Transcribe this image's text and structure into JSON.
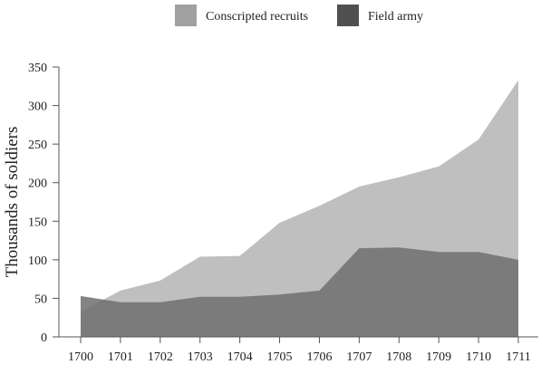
{
  "chart_data": {
    "type": "area",
    "title": "",
    "xlabel": "",
    "ylabel": "Thousands of soldiers",
    "x": [
      1700,
      1701,
      1702,
      1703,
      1704,
      1705,
      1706,
      1707,
      1708,
      1709,
      1710,
      1711
    ],
    "x_tick_labels": [
      "1700",
      "1701",
      "1702",
      "1703",
      "1704",
      "1705",
      "1706",
      "1707",
      "1708",
      "1709",
      "1710",
      "1711"
    ],
    "ylim": [
      0,
      350
    ],
    "y_ticks": [
      0,
      50,
      100,
      150,
      200,
      250,
      300,
      350
    ],
    "y_tick_labels": [
      "0",
      "50",
      "100",
      "150",
      "200",
      "250",
      "300",
      "350"
    ],
    "grid": false,
    "legend_position": "top",
    "series": [
      {
        "name": "Conscripted recruits",
        "color": "#b4b4b4",
        "values": [
          33,
          60,
          73,
          104,
          105,
          148,
          170,
          195,
          207,
          221,
          256,
          333
        ]
      },
      {
        "name": "Field army",
        "color": "#6e6e6e",
        "values": [
          53,
          45,
          45,
          52,
          52,
          55,
          60,
          115,
          116,
          110,
          110,
          100
        ]
      }
    ]
  }
}
